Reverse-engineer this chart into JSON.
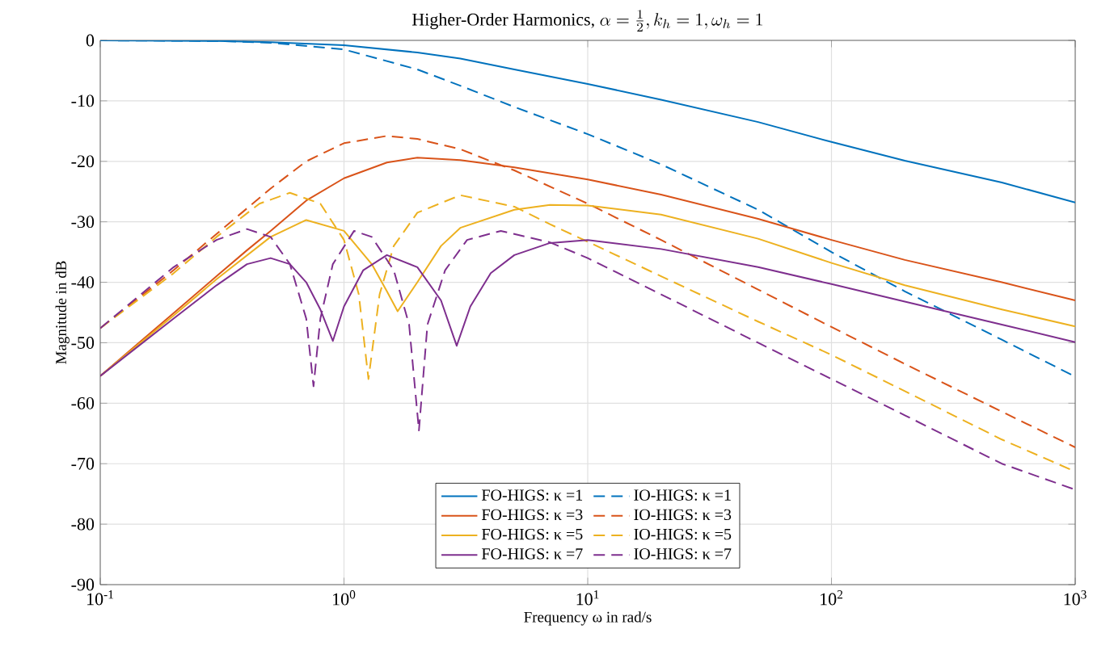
{
  "chart_data": {
    "type": "line",
    "title": "\\text{Higher-Order Harmonics, }\\alpha=\\frac{1}{2}, k_h=1, \\omega_h=1",
    "xlabel": "Frequency ω in rad/s",
    "ylabel": "Magnitude in dB",
    "log": "x",
    "grid": true,
    "legend": "bottom",
    "xlim": [
      0.1,
      1000
    ],
    "ylim": [
      -90,
      0
    ],
    "xticks": [
      {
        "value": 0.1,
        "label": "10$^{-1}$"
      },
      {
        "value": 1,
        "label": "10$^{0}$"
      },
      {
        "value": 10,
        "label": "10$^{1}$"
      },
      {
        "value": 100,
        "label": "10$^{2}$"
      },
      {
        "value": 1000,
        "label": "10$^{3}$"
      }
    ],
    "yticks": [
      -90,
      -80,
      -70,
      -60,
      -50,
      -40,
      -30,
      -20,
      -10,
      0
    ],
    "series": [
      {
        "name": "FO-HIGS: κ =1",
        "color": "#0072bd",
        "line_style": "solid",
        "x": [
          0.1,
          0.3,
          0.5,
          1,
          2,
          3,
          5,
          10,
          20,
          50,
          100,
          200,
          500,
          1000
        ],
        "values": [
          0,
          -0.1,
          -0.3,
          -0.8,
          -2,
          -3,
          -4.8,
          -7.2,
          -9.8,
          -13.5,
          -16.8,
          -19.9,
          -23.5,
          -26.8
        ]
      },
      {
        "name": "IO-HIGS: κ =1",
        "color": "#0072bd",
        "line_style": "dashed",
        "x": [
          0.1,
          0.3,
          0.5,
          1,
          2,
          3,
          5,
          10,
          20,
          50,
          100,
          200,
          500,
          1000
        ],
        "values": [
          0,
          -0.1,
          -0.4,
          -1.5,
          -4.8,
          -7.5,
          -11,
          -15.5,
          -20.5,
          -28,
          -35,
          -41.5,
          -49.5,
          -55.6
        ]
      },
      {
        "name": "FO-HIGS: κ =3",
        "color": "#d95319",
        "line_style": "solid",
        "x": [
          0.1,
          0.15,
          0.2,
          0.3,
          0.4,
          0.5,
          0.7,
          1,
          1.5,
          2,
          3,
          5,
          10,
          20,
          50,
          100,
          200,
          500,
          1000
        ],
        "values": [
          -55.5,
          -49.4,
          -45.1,
          -39,
          -34.7,
          -31.5,
          -26.5,
          -22.8,
          -20.2,
          -19.4,
          -19.8,
          -21,
          -23,
          -25.5,
          -29.5,
          -33,
          -36.3,
          -40,
          -43
        ]
      },
      {
        "name": "IO-HIGS: κ =3",
        "color": "#d95319",
        "line_style": "dashed",
        "x": [
          0.1,
          0.15,
          0.2,
          0.3,
          0.5,
          0.7,
          1,
          1.5,
          2,
          3,
          5,
          10,
          20,
          50,
          100,
          200,
          500,
          1000
        ],
        "values": [
          -47.6,
          -42,
          -38,
          -32,
          -24.5,
          -20,
          -17,
          -15.8,
          -16.3,
          -18,
          -21.5,
          -27,
          -33,
          -41.2,
          -47.4,
          -53.5,
          -61.4,
          -67.3
        ]
      },
      {
        "name": "FO-HIGS: κ =5",
        "color": "#edb120",
        "line_style": "solid",
        "x": [
          0.1,
          0.2,
          0.3,
          0.5,
          0.7,
          1,
          1.3,
          1.5,
          1.66,
          2,
          2.5,
          3,
          5,
          7,
          10,
          20,
          50,
          100,
          200,
          500,
          1000
        ],
        "values": [
          -55.5,
          -45.5,
          -39.5,
          -32.5,
          -29.7,
          -31.5,
          -37,
          -41.5,
          -44.8,
          -40,
          -34,
          -31,
          -28,
          -27.2,
          -27.3,
          -28.8,
          -32.8,
          -36.8,
          -40.5,
          -44.5,
          -47.3
        ]
      },
      {
        "name": "IO-HIGS: κ =5",
        "color": "#edb120",
        "line_style": "dashed",
        "x": [
          0.1,
          0.2,
          0.3,
          0.45,
          0.6,
          0.8,
          1,
          1.15,
          1.26,
          1.4,
          1.6,
          2,
          3,
          5,
          7,
          10,
          20,
          50,
          100,
          200,
          500,
          1000
        ],
        "values": [
          -47.6,
          -38.5,
          -32.5,
          -27,
          -25.2,
          -27,
          -33,
          -42,
          -56,
          -42,
          -34,
          -28.5,
          -25.6,
          -27.5,
          -30.4,
          -33.3,
          -39,
          -46.5,
          -52,
          -58,
          -66,
          -71.3
        ]
      },
      {
        "name": "FO-HIGS: κ =7",
        "color": "#7e2f8e",
        "line_style": "solid",
        "x": [
          0.1,
          0.2,
          0.3,
          0.4,
          0.5,
          0.6,
          0.7,
          0.8,
          0.9,
          1,
          1.2,
          1.5,
          2,
          2.5,
          2.9,
          3.3,
          4,
          5,
          7,
          10,
          20,
          50,
          100,
          200,
          500,
          1000
        ],
        "values": [
          -55.5,
          -46,
          -40.5,
          -37,
          -36,
          -37,
          -40,
          -44.5,
          -49.7,
          -44,
          -38,
          -35.5,
          -37.5,
          -43,
          -50.5,
          -44,
          -38.5,
          -35.5,
          -33.5,
          -33,
          -34.5,
          -37.5,
          -40.3,
          -43.2,
          -47,
          -49.9
        ]
      },
      {
        "name": "IO-HIGS: κ =7",
        "color": "#7e2f8e",
        "line_style": "dashed",
        "x": [
          0.1,
          0.2,
          0.3,
          0.4,
          0.5,
          0.6,
          0.7,
          0.75,
          0.8,
          0.9,
          1.1,
          1.3,
          1.6,
          1.85,
          2.03,
          2.2,
          2.6,
          3.2,
          4.4,
          7,
          10,
          20,
          50,
          100,
          200,
          500,
          1000
        ],
        "values": [
          -47.6,
          -37.5,
          -33,
          -31.2,
          -32.5,
          -37,
          -46,
          -57.2,
          -46,
          -37,
          -31.5,
          -32.5,
          -38,
          -47,
          -64.5,
          -47,
          -38,
          -33,
          -31.5,
          -33.4,
          -36,
          -42,
          -50,
          -56,
          -62,
          -70,
          -74.3
        ]
      }
    ]
  }
}
